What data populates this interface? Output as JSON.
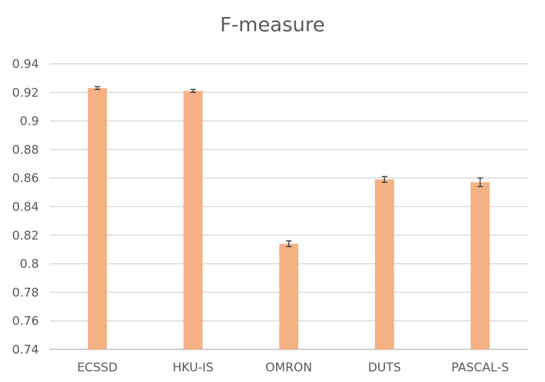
{
  "chart_data": {
    "type": "bar",
    "title": "F-measure",
    "xlabel": "",
    "ylabel": "",
    "categories": [
      "ECSSD",
      "HKU-IS",
      "OMRON",
      "DUTS",
      "PASCAL-S"
    ],
    "values": [
      0.923,
      0.921,
      0.814,
      0.859,
      0.857
    ],
    "error": [
      0.001,
      0.001,
      0.002,
      0.002,
      0.003
    ],
    "ylim": [
      0.74,
      0.94
    ],
    "yticks": [
      "0.74",
      "0.76",
      "0.78",
      "0.8",
      "0.82",
      "0.84",
      "0.86",
      "0.88",
      "0.9",
      "0.92",
      "0.94"
    ],
    "grid": true,
    "legend": "none",
    "colors": {
      "bar": "#F4B183",
      "grid": "#D9D9D9",
      "axis": "#BFBFBF",
      "error_bar": "#404040",
      "text": "#595959"
    }
  }
}
